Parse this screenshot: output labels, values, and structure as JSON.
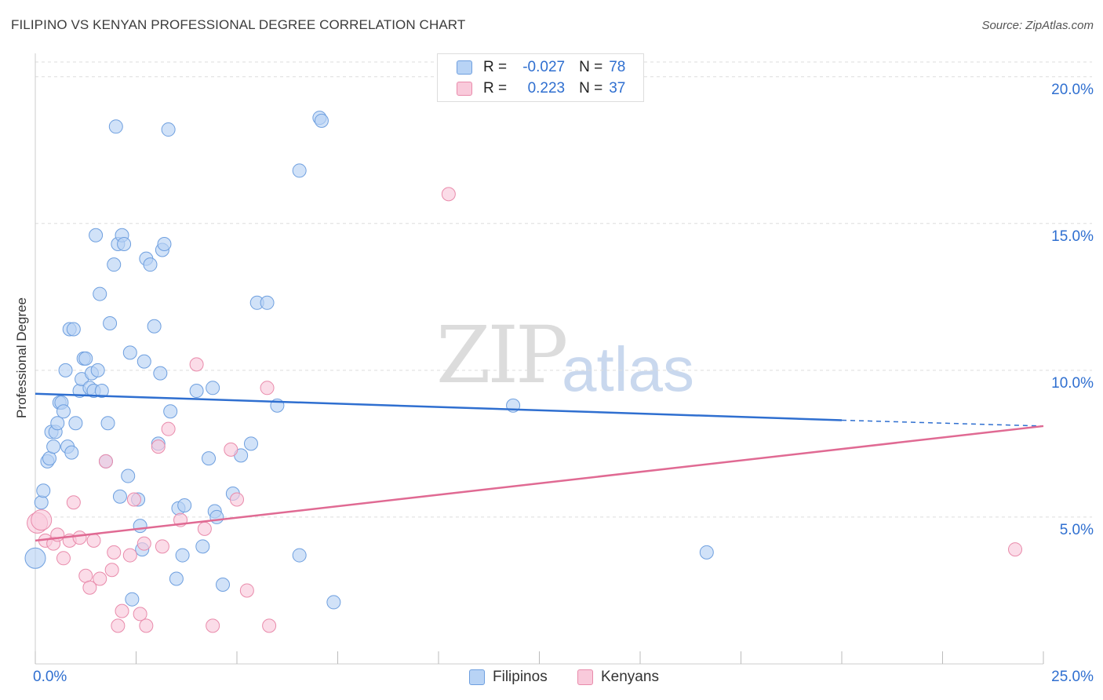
{
  "title": "FILIPINO VS KENYAN PROFESSIONAL DEGREE CORRELATION CHART",
  "source": "Source: ZipAtlas.com",
  "watermark": {
    "zip": "ZIP",
    "atlas": "atlas"
  },
  "colors": {
    "filipino_fill": "#b8d3f5",
    "filipino_stroke": "#6e9fdf",
    "filipino_line": "#2f6fd0",
    "kenyan_fill": "#f9cadb",
    "kenyan_stroke": "#e98bab",
    "kenyan_line": "#e06a93",
    "grid": "#dddddd",
    "tick_text": "#2f6fd0"
  },
  "legend": {
    "rows": [
      {
        "r_label": "R =",
        "r_value": "-0.027",
        "n_label": "N =",
        "n_value": "78"
      },
      {
        "r_label": "R =",
        "r_value": "0.223",
        "n_label": "N =",
        "n_value": "37"
      }
    ]
  },
  "bottom_legend": {
    "filipinos": "Filipinos",
    "kenyans": "Kenyans"
  },
  "chart_data": {
    "type": "scatter",
    "title": "FILIPINO VS KENYAN PROFESSIONAL DEGREE CORRELATION CHART",
    "xlabel": "",
    "ylabel": "Professional Degree",
    "xlim": [
      0,
      25
    ],
    "ylim": [
      0,
      20.5
    ],
    "x_tick_labels": [
      "0.0%",
      "25.0%"
    ],
    "y_ticks": [
      5,
      10,
      15,
      20
    ],
    "y_tick_labels": [
      "5.0%",
      "10.0%",
      "15.0%",
      "20.0%"
    ],
    "grid": true,
    "series": [
      {
        "name": "Filipinos",
        "r": -0.027,
        "n": 78,
        "trend": {
          "x0": 0,
          "y0": 9.2,
          "x1": 20,
          "y1": 8.3,
          "dash_to_x": 25,
          "dash_to_y": 8.1
        },
        "points": [
          [
            0.0,
            3.6
          ],
          [
            0.15,
            5.5
          ],
          [
            0.2,
            5.9
          ],
          [
            0.3,
            6.9
          ],
          [
            0.35,
            7.0
          ],
          [
            0.4,
            7.9
          ],
          [
            0.45,
            7.4
          ],
          [
            0.5,
            7.9
          ],
          [
            0.55,
            8.2
          ],
          [
            0.6,
            8.9
          ],
          [
            0.65,
            8.9
          ],
          [
            0.7,
            8.6
          ],
          [
            0.75,
            10.0
          ],
          [
            0.8,
            7.4
          ],
          [
            0.85,
            11.4
          ],
          [
            0.9,
            7.2
          ],
          [
            0.95,
            11.4
          ],
          [
            1.0,
            8.2
          ],
          [
            1.1,
            9.3
          ],
          [
            1.15,
            9.7
          ],
          [
            1.2,
            10.4
          ],
          [
            1.25,
            10.4
          ],
          [
            1.35,
            9.4
          ],
          [
            1.4,
            9.9
          ],
          [
            1.45,
            9.3
          ],
          [
            1.5,
            14.6
          ],
          [
            1.55,
            10.0
          ],
          [
            1.6,
            12.6
          ],
          [
            1.65,
            9.3
          ],
          [
            1.75,
            6.9
          ],
          [
            1.8,
            8.2
          ],
          [
            1.85,
            11.6
          ],
          [
            1.95,
            13.6
          ],
          [
            2.0,
            18.3
          ],
          [
            2.05,
            14.3
          ],
          [
            2.1,
            5.7
          ],
          [
            2.15,
            14.6
          ],
          [
            2.2,
            14.3
          ],
          [
            2.3,
            6.4
          ],
          [
            2.35,
            10.6
          ],
          [
            2.4,
            2.2
          ],
          [
            2.55,
            5.6
          ],
          [
            2.6,
            4.7
          ],
          [
            2.65,
            3.9
          ],
          [
            2.7,
            10.3
          ],
          [
            2.75,
            13.8
          ],
          [
            2.85,
            13.6
          ],
          [
            2.95,
            11.5
          ],
          [
            3.05,
            7.5
          ],
          [
            3.1,
            9.9
          ],
          [
            3.15,
            14.1
          ],
          [
            3.2,
            14.3
          ],
          [
            3.3,
            18.2
          ],
          [
            3.35,
            8.6
          ],
          [
            3.5,
            2.9
          ],
          [
            3.55,
            5.3
          ],
          [
            3.65,
            3.7
          ],
          [
            3.7,
            5.4
          ],
          [
            4.0,
            9.3
          ],
          [
            4.15,
            4.0
          ],
          [
            4.3,
            7.0
          ],
          [
            4.4,
            9.4
          ],
          [
            4.45,
            5.2
          ],
          [
            4.5,
            5.0
          ],
          [
            4.65,
            2.7
          ],
          [
            4.9,
            5.8
          ],
          [
            5.1,
            7.1
          ],
          [
            5.35,
            7.5
          ],
          [
            5.5,
            12.3
          ],
          [
            5.75,
            12.3
          ],
          [
            6.0,
            8.8
          ],
          [
            6.55,
            3.7
          ],
          [
            6.55,
            16.8
          ],
          [
            7.05,
            18.6
          ],
          [
            7.1,
            18.5
          ],
          [
            7.4,
            2.1
          ],
          [
            11.85,
            8.8
          ],
          [
            16.65,
            3.8
          ]
        ]
      },
      {
        "name": "Kenyans",
        "r": 0.223,
        "n": 37,
        "trend": {
          "x0": 0,
          "y0": 4.2,
          "x1": 25,
          "y1": 8.1
        },
        "points": [
          [
            0.05,
            4.8
          ],
          [
            0.15,
            4.9
          ],
          [
            0.25,
            4.2
          ],
          [
            0.45,
            4.1
          ],
          [
            0.55,
            4.4
          ],
          [
            0.7,
            3.6
          ],
          [
            0.85,
            4.2
          ],
          [
            0.95,
            5.5
          ],
          [
            1.1,
            4.3
          ],
          [
            1.25,
            3.0
          ],
          [
            1.35,
            2.6
          ],
          [
            1.45,
            4.2
          ],
          [
            1.6,
            2.9
          ],
          [
            1.75,
            6.9
          ],
          [
            1.9,
            3.2
          ],
          [
            1.95,
            3.8
          ],
          [
            2.05,
            1.3
          ],
          [
            2.15,
            1.8
          ],
          [
            2.35,
            3.7
          ],
          [
            2.45,
            5.6
          ],
          [
            2.6,
            1.7
          ],
          [
            2.7,
            4.1
          ],
          [
            2.75,
            1.3
          ],
          [
            3.05,
            7.4
          ],
          [
            3.15,
            4.0
          ],
          [
            3.3,
            8.0
          ],
          [
            3.6,
            4.9
          ],
          [
            4.0,
            10.2
          ],
          [
            4.2,
            4.6
          ],
          [
            4.4,
            1.3
          ],
          [
            4.85,
            7.3
          ],
          [
            5.0,
            5.6
          ],
          [
            5.25,
            2.5
          ],
          [
            5.75,
            9.4
          ],
          [
            5.8,
            1.3
          ],
          [
            10.25,
            16.0
          ],
          [
            24.3,
            3.9
          ]
        ]
      }
    ]
  }
}
